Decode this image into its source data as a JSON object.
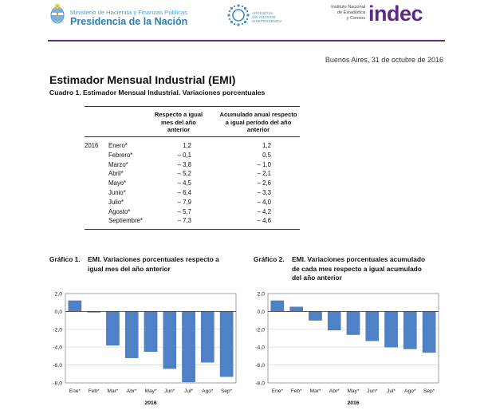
{
  "header": {
    "ministry_line1": "Ministerio de Hacienda y Finanzas Públicas",
    "ministry_line2": "Presidencia de la Nación",
    "bicentenario_line1": "ARGENTINA",
    "bicentenario_line2": "200 AÑOS DE",
    "bicentenario_line3": "INDEPENDENCIA",
    "institute_line1": "Instituto Nacional",
    "institute_line2": "de Estadística",
    "institute_line3": "y Censos",
    "indec_logo": "indec",
    "brand_color": "#5b2a86"
  },
  "date": "Buenos Aires, 31 de octubre de 2016",
  "title": "Estimador Mensual Industrial (EMI)",
  "cuadro": "Cuadro 1. Estimador Mensual Industrial. Variaciones porcentuales",
  "table": {
    "col1_header": [
      "Respecto a igual",
      "mes del año",
      "anterior"
    ],
    "col2_header": [
      "Acumulado anual respecto",
      "a igual período del año",
      "anterior"
    ],
    "year": "2016",
    "rows": [
      {
        "month": "Enero*",
        "v1": "1,2",
        "v2": "1,2"
      },
      {
        "month": "Febrero*",
        "v1": "– 0,1",
        "v2": "0,5"
      },
      {
        "month": "Marzo*",
        "v1": "– 3,8",
        "v2": "– 1,0"
      },
      {
        "month": "Abril*",
        "v1": "– 5,2",
        "v2": "– 2,1"
      },
      {
        "month": "Mayo*",
        "v1": "– 4,5",
        "v2": "– 2,6"
      },
      {
        "month": "Junio*",
        "v1": "– 6,4",
        "v2": "– 3,3"
      },
      {
        "month": "Julio*",
        "v1": "– 7,9",
        "v2": "– 4,0"
      },
      {
        "month": "Agosto*",
        "v1": "– 5,7",
        "v2": "– 4,2"
      },
      {
        "month": "Septiembre*",
        "v1": "– 7,3",
        "v2": "– 4,6"
      }
    ]
  },
  "grafico1": {
    "label": "Gráfico 1.",
    "title_lines": [
      "EMI. Variaciones porcentuales respecto a",
      "igual mes del año anterior"
    ]
  },
  "grafico2": {
    "label": "Gráfico 2.",
    "title_lines": [
      "EMI. Variaciones porcentuales acumulado",
      "de cada mes respecto a igual acumulado",
      "del año anterior"
    ]
  },
  "chart_data": [
    {
      "type": "bar",
      "categories": [
        "Ene*",
        "Feb*",
        "Mar*",
        "Abr*",
        "May*",
        "Jun*",
        "Jul*",
        "Ago*",
        "Sep*"
      ],
      "values": [
        1.2,
        -0.1,
        -3.8,
        -5.2,
        -4.5,
        -6.4,
        -7.9,
        -5.7,
        -7.3
      ],
      "yticks": [
        "2,0",
        "0,0",
        "-2,0",
        "-4,0",
        "-6,0",
        "-8,0"
      ],
      "ylim": [
        -8,
        2
      ],
      "xlabel": "2016",
      "grid": true,
      "bar_color": "#4f81c7"
    },
    {
      "type": "bar",
      "categories": [
        "Ene*",
        "Feb*",
        "Mar*",
        "Abr*",
        "May*",
        "Jun*",
        "Jul*",
        "Ago*",
        "Sep*"
      ],
      "values": [
        1.2,
        0.5,
        -1.0,
        -2.1,
        -2.6,
        -3.3,
        -4.0,
        -4.2,
        -4.6
      ],
      "yticks": [
        "2,0",
        "0,0",
        "-2,0",
        "-4,0",
        "-6,0",
        "-8,0"
      ],
      "ylim": [
        -8,
        2
      ],
      "xlabel": "2016",
      "grid": true,
      "bar_color": "#4f81c7"
    }
  ]
}
